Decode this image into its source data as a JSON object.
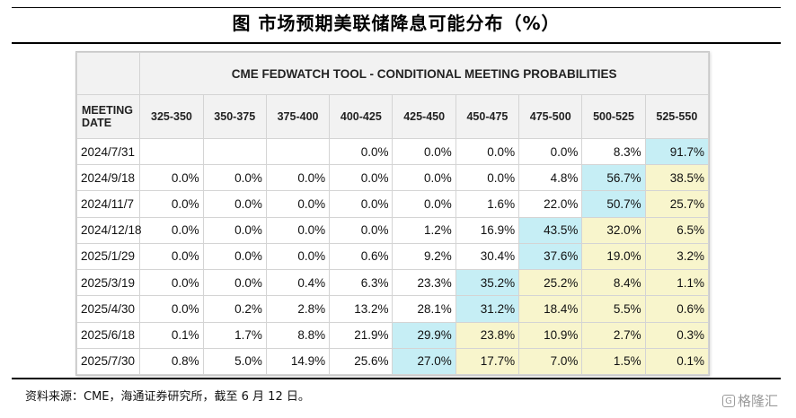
{
  "figure_title": "图  市场预期美联储降息可能分布（%）",
  "table": {
    "banner": "CME FEDWATCH TOOL - CONDITIONAL MEETING PROBABILITIES",
    "columns": [
      "MEETING DATE",
      "325-350",
      "350-375",
      "375-400",
      "400-425",
      "425-450",
      "450-475",
      "475-500",
      "500-525",
      "525-550"
    ],
    "rows": [
      {
        "date": "2024/7/31",
        "cells": [
          "",
          "",
          "",
          "0.0%",
          "0.0%",
          "0.0%",
          "0.0%",
          "8.3%",
          "91.7%"
        ]
      },
      {
        "date": "2024/9/18",
        "cells": [
          "0.0%",
          "0.0%",
          "0.0%",
          "0.0%",
          "0.0%",
          "0.0%",
          "4.8%",
          "56.7%",
          "38.5%"
        ]
      },
      {
        "date": "2024/11/7",
        "cells": [
          "0.0%",
          "0.0%",
          "0.0%",
          "0.0%",
          "0.0%",
          "1.6%",
          "22.0%",
          "50.7%",
          "25.7%"
        ]
      },
      {
        "date": "2024/12/18",
        "cells": [
          "0.0%",
          "0.0%",
          "0.0%",
          "0.0%",
          "1.2%",
          "16.9%",
          "43.5%",
          "32.0%",
          "6.5%"
        ]
      },
      {
        "date": "2025/1/29",
        "cells": [
          "0.0%",
          "0.0%",
          "0.0%",
          "0.6%",
          "9.2%",
          "30.4%",
          "37.6%",
          "19.0%",
          "3.2%"
        ]
      },
      {
        "date": "2025/3/19",
        "cells": [
          "0.0%",
          "0.0%",
          "0.4%",
          "6.3%",
          "23.3%",
          "35.2%",
          "25.2%",
          "8.4%",
          "1.1%"
        ]
      },
      {
        "date": "2025/4/30",
        "cells": [
          "0.0%",
          "0.2%",
          "2.8%",
          "13.2%",
          "28.1%",
          "31.2%",
          "18.4%",
          "5.5%",
          "0.6%"
        ]
      },
      {
        "date": "2025/6/18",
        "cells": [
          "0.1%",
          "1.7%",
          "8.8%",
          "21.9%",
          "29.9%",
          "23.8%",
          "10.9%",
          "2.7%",
          "0.3%"
        ]
      },
      {
        "date": "2025/7/30",
        "cells": [
          "0.8%",
          "5.0%",
          "14.9%",
          "25.6%",
          "27.0%",
          "17.7%",
          "7.0%",
          "1.5%",
          "0.1%"
        ]
      }
    ],
    "highlights": {
      "cyan": [
        [
          0,
          8
        ],
        [
          1,
          7
        ],
        [
          2,
          7
        ],
        [
          3,
          6
        ],
        [
          4,
          6
        ],
        [
          5,
          5
        ],
        [
          6,
          5
        ],
        [
          7,
          4
        ],
        [
          8,
          4
        ]
      ],
      "yellow": [
        [
          1,
          8
        ],
        [
          2,
          8
        ],
        [
          3,
          7
        ],
        [
          3,
          8
        ],
        [
          4,
          7
        ],
        [
          4,
          8
        ],
        [
          5,
          6
        ],
        [
          5,
          7
        ],
        [
          5,
          8
        ],
        [
          6,
          6
        ],
        [
          6,
          7
        ],
        [
          6,
          8
        ],
        [
          7,
          5
        ],
        [
          7,
          6
        ],
        [
          7,
          7
        ],
        [
          7,
          8
        ],
        [
          8,
          5
        ],
        [
          8,
          6
        ],
        [
          8,
          7
        ],
        [
          8,
          8
        ]
      ]
    },
    "colors": {
      "cyan": "#c6eef5",
      "yellow": "#f8f5cc",
      "header_bg": "#f2f2f2"
    }
  },
  "source_note": "资料来源：CME，海通证券研究所，截至 6 月 12 日。",
  "watermark": {
    "icon": "G",
    "text": "格隆汇"
  }
}
